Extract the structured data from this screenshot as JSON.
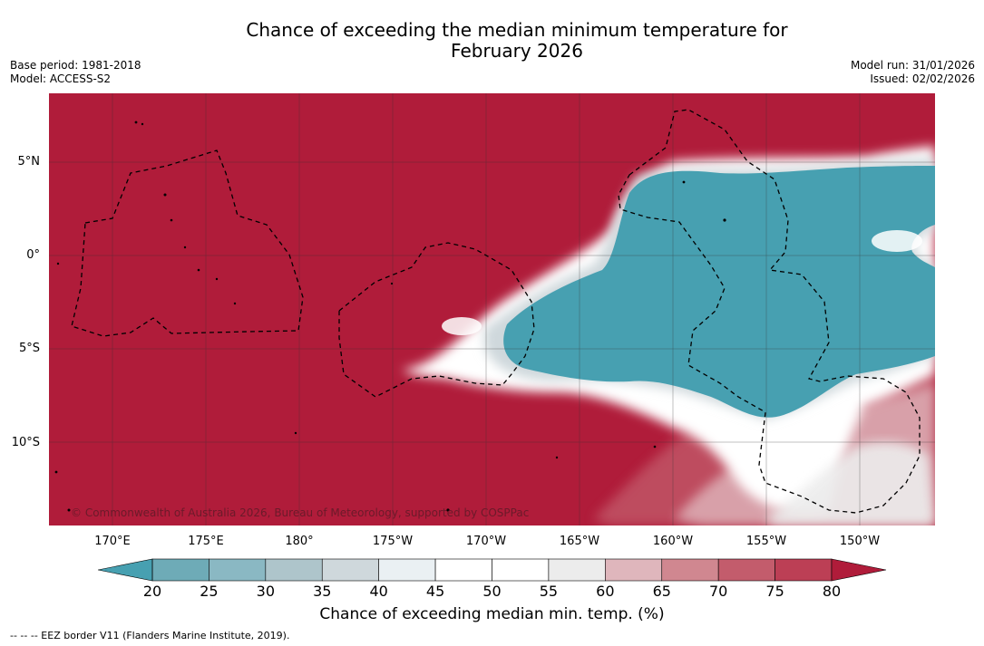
{
  "title": {
    "line1": "Chance of exceeding the median minimum temperature for",
    "line2": "February 2026"
  },
  "meta": {
    "base_period": "Base period: 1981-2018",
    "model": "Model: ACCESS-S2",
    "model_run": "Model run: 31/01/2026",
    "issued": "Issued: 02/02/2026"
  },
  "map": {
    "copyright": "© Commonwealth of Australia 2026, Bureau of Meteorology, supported by COSPPac",
    "lat_labels": [
      "5°N",
      "0°",
      "5°S",
      "10°S"
    ],
    "lon_labels": [
      "170°E",
      "175°E",
      "180°",
      "175°W",
      "170°W",
      "165°W",
      "160°W",
      "155°W",
      "150°W"
    ],
    "colors": {
      "above": "#b01c3a",
      "below": "#47a0b1",
      "neutral": "#ffffff",
      "grid": "#333333",
      "eez": "#000000"
    }
  },
  "colorbar": {
    "ticks": [
      "20",
      "25",
      "30",
      "35",
      "40",
      "45",
      "50",
      "55",
      "60",
      "65",
      "70",
      "75",
      "80"
    ],
    "colors": [
      "#47a0b1",
      "#6eabb7",
      "#8ab8c3",
      "#aec5cb",
      "#cfd8dc",
      "#eaf0f3",
      "#ffffff",
      "#ffffff",
      "#ececec",
      "#dfb6bc",
      "#d08790",
      "#c35c6c",
      "#bc3f55",
      "#b01c3a"
    ],
    "label": "Chance of exceeding median min. temp. (%)"
  },
  "footnote": "--  --  -- EEZ border V11 (Flanders Marine Institute, 2019)."
}
